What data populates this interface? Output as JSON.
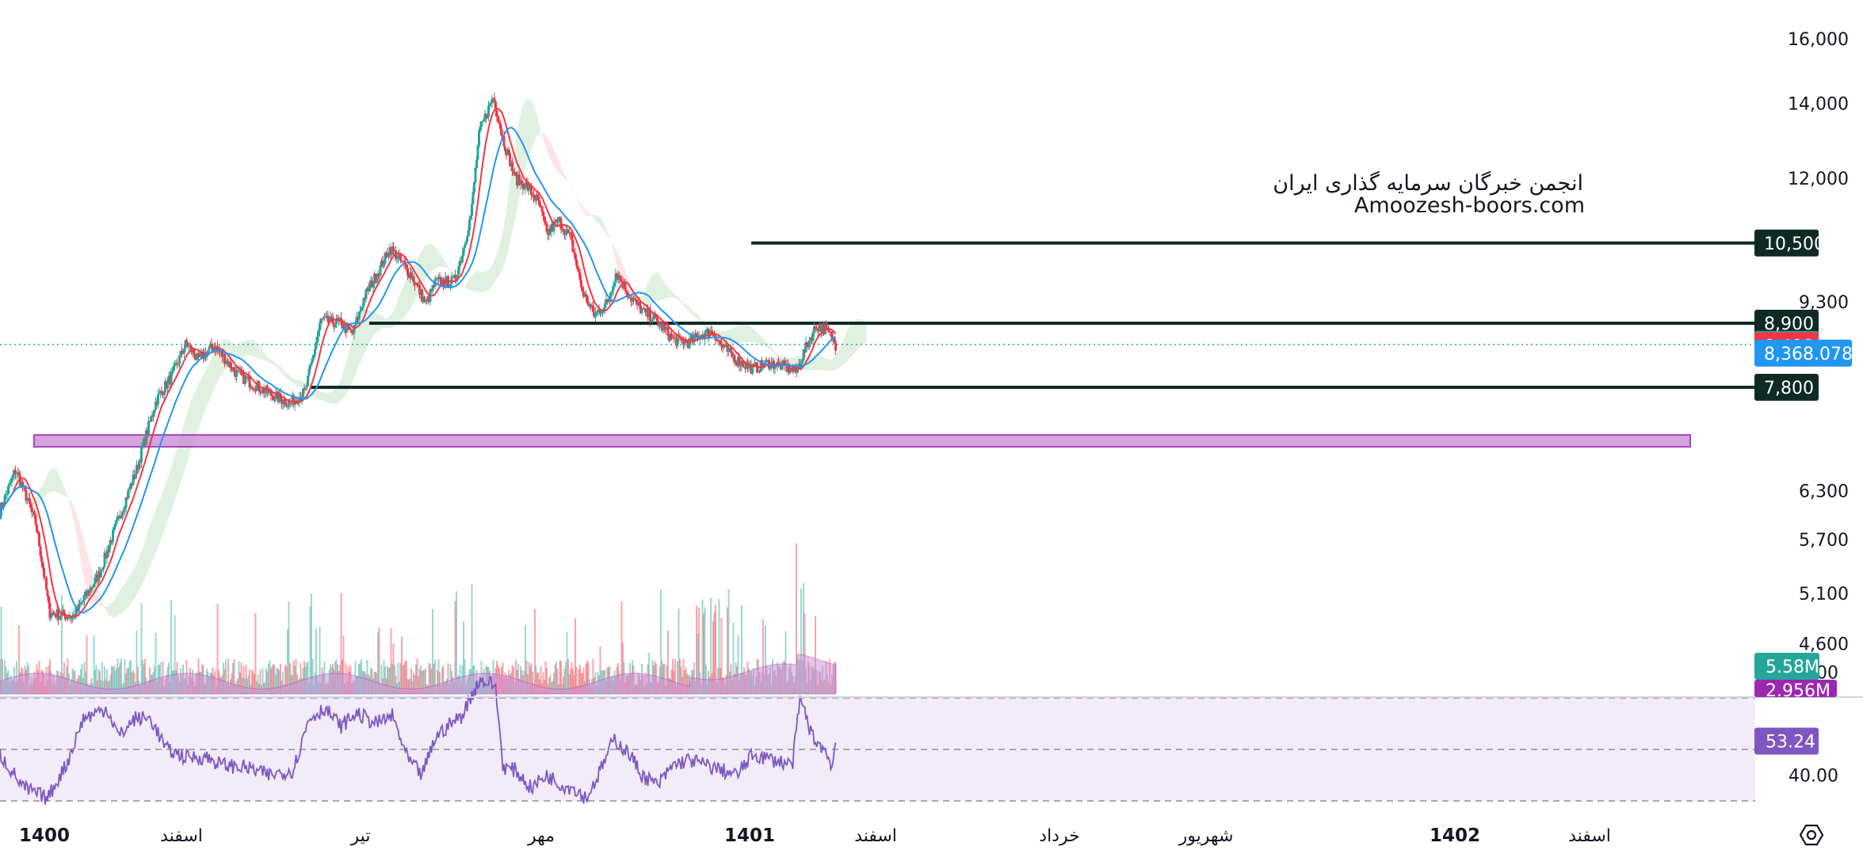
{
  "watermark": {
    "line1": "انجمن خبرگان سرمایه گذاری ایران",
    "line2": "Amoozesh-boors.com"
  },
  "chart_data": [
    {
      "type": "candlestick",
      "title": "",
      "price_axis": {
        "scale": "log",
        "ticks": [
          "16,000",
          "14,000",
          "12,000",
          "10,500",
          "9,300",
          "8,900",
          "8,520",
          "8,498.5",
          "8,368.078",
          "7,800",
          "6,300",
          "5,700",
          "5,100",
          "4,600"
        ],
        "ylim": [
          4400,
          16600
        ]
      },
      "time_axis": {
        "labels": [
          "1400",
          "اسفند",
          "تیر",
          "مهر",
          "1401",
          "اسفند",
          "خرداد",
          "شهریور",
          "1402",
          "اسفند"
        ],
        "bold_labels": [
          "1400",
          "1401",
          "1402"
        ]
      },
      "horizontal_levels": [
        10500,
        8900,
        7800
      ],
      "support_zone": {
        "from": 6900,
        "to": 7070,
        "color": "#ce93d8"
      },
      "current_price": {
        "value": 8520,
        "label": "8,520",
        "color": "#26a69a"
      },
      "price_badges": [
        {
          "label": "10,500",
          "value": 10500,
          "color": "#0f2a25"
        },
        {
          "label": "8,900",
          "value": 8900,
          "color": "#0f2a25"
        },
        {
          "label": "8,520",
          "value": 8520,
          "color": "#26a69a"
        },
        {
          "label": "8,498.5",
          "value": 8498.5,
          "color": "#f23645"
        },
        {
          "label": "8,368.078",
          "value": 8368.078,
          "color": "#2196f3"
        },
        {
          "label": "7,800",
          "value": 7800,
          "color": "#0f2a25"
        }
      ],
      "series": [
        {
          "name": "",
          "kind": "ma-fast",
          "color": "#f23645",
          "last": 8498.5
        },
        {
          "name": "",
          "kind": "ma-slow",
          "color": "#2196f3",
          "last": 8368.078
        },
        {
          "name": "",
          "kind": "ichimoku-cloud",
          "bull_color": "#c8e6c9",
          "bear_color": "#ffcdd2"
        }
      ],
      "ohlc_path": [
        [
          0,
          6050
        ],
        [
          40,
          6580
        ],
        [
          90,
          5900
        ],
        [
          125,
          4900
        ],
        [
          185,
          4860
        ],
        [
          250,
          5300
        ],
        [
          300,
          5950
        ],
        [
          345,
          6580
        ],
        [
          395,
          7600
        ],
        [
          435,
          8000
        ],
        [
          470,
          8550
        ],
        [
          500,
          8250
        ],
        [
          540,
          8500
        ],
        [
          600,
          8000
        ],
        [
          680,
          7700
        ],
        [
          730,
          7550
        ],
        [
          770,
          7720
        ],
        [
          790,
          8300
        ],
        [
          810,
          8950
        ],
        [
          860,
          8900
        ],
        [
          890,
          8700
        ],
        [
          920,
          9400
        ],
        [
          955,
          9900
        ],
        [
          985,
          10400
        ],
        [
          1040,
          9800
        ],
        [
          1075,
          9250
        ],
        [
          1100,
          9700
        ],
        [
          1145,
          9700
        ],
        [
          1165,
          10200
        ],
        [
          1190,
          11200
        ],
        [
          1210,
          13200
        ],
        [
          1245,
          14200
        ],
        [
          1270,
          13000
        ],
        [
          1300,
          12000
        ],
        [
          1330,
          11800
        ],
        [
          1360,
          11400
        ],
        [
          1380,
          10700
        ],
        [
          1410,
          11000
        ],
        [
          1440,
          10600
        ],
        [
          1470,
          9500
        ],
        [
          1500,
          9050
        ],
        [
          1535,
          9300
        ],
        [
          1555,
          9900
        ],
        [
          1590,
          9400
        ],
        [
          1625,
          9100
        ],
        [
          1650,
          9000
        ],
        [
          1700,
          8600
        ],
        [
          1740,
          8550
        ],
        [
          1770,
          8700
        ],
        [
          1800,
          8750
        ],
        [
          1820,
          8500
        ],
        [
          1860,
          8250
        ],
        [
          1900,
          8100
        ],
        [
          1940,
          8200
        ],
        [
          1975,
          8150
        ],
        [
          2010,
          8050
        ],
        [
          2030,
          8400
        ],
        [
          2060,
          8850
        ],
        [
          2080,
          8800
        ],
        [
          2100,
          8650
        ],
        [
          2110,
          8500
        ]
      ],
      "volume": {
        "last_label": "5.58M",
        "ma_label": "2.956M",
        "color_up": "#26a69a",
        "color_down": "#f23645",
        "ma_color": "#ce93d8"
      }
    },
    {
      "type": "line",
      "title": "",
      "ylim": [
        20,
        95
      ],
      "reference_levels": [
        70,
        50,
        30
      ],
      "ticks": [
        "80.00",
        "40.00"
      ],
      "last_label": "53.24",
      "last_value": 53.24,
      "color": "#7e57c2",
      "band_color": "#ede7f6",
      "path": [
        [
          0,
          48
        ],
        [
          60,
          35
        ],
        [
          120,
          31
        ],
        [
          170,
          45
        ],
        [
          210,
          62
        ],
        [
          270,
          66
        ],
        [
          300,
          55
        ],
        [
          340,
          62
        ],
        [
          380,
          62
        ],
        [
          420,
          50
        ],
        [
          470,
          47
        ],
        [
          520,
          47
        ],
        [
          560,
          44
        ],
        [
          620,
          43
        ],
        [
          680,
          40
        ],
        [
          740,
          42
        ],
        [
          780,
          62
        ],
        [
          820,
          66
        ],
        [
          860,
          59
        ],
        [
          900,
          64
        ],
        [
          950,
          60
        ],
        [
          990,
          63
        ],
        [
          1030,
          46
        ],
        [
          1065,
          40
        ],
        [
          1100,
          55
        ],
        [
          1130,
          59
        ],
        [
          1165,
          63
        ],
        [
          1210,
          77
        ],
        [
          1250,
          75
        ],
        [
          1270,
          43
        ],
        [
          1300,
          42
        ],
        [
          1340,
          35
        ],
        [
          1380,
          40
        ],
        [
          1420,
          36
        ],
        [
          1450,
          35
        ],
        [
          1480,
          31
        ],
        [
          1510,
          40
        ],
        [
          1550,
          54
        ],
        [
          1590,
          48
        ],
        [
          1620,
          40
        ],
        [
          1660,
          36
        ],
        [
          1700,
          44
        ],
        [
          1740,
          46
        ],
        [
          1780,
          44
        ],
        [
          1820,
          42
        ],
        [
          1860,
          40
        ],
        [
          1900,
          48
        ],
        [
          1950,
          46
        ],
        [
          2000,
          44
        ],
        [
          2020,
          70
        ],
        [
          2050,
          55
        ],
        [
          2080,
          50
        ],
        [
          2100,
          44
        ],
        [
          2110,
          53
        ]
      ]
    }
  ]
}
